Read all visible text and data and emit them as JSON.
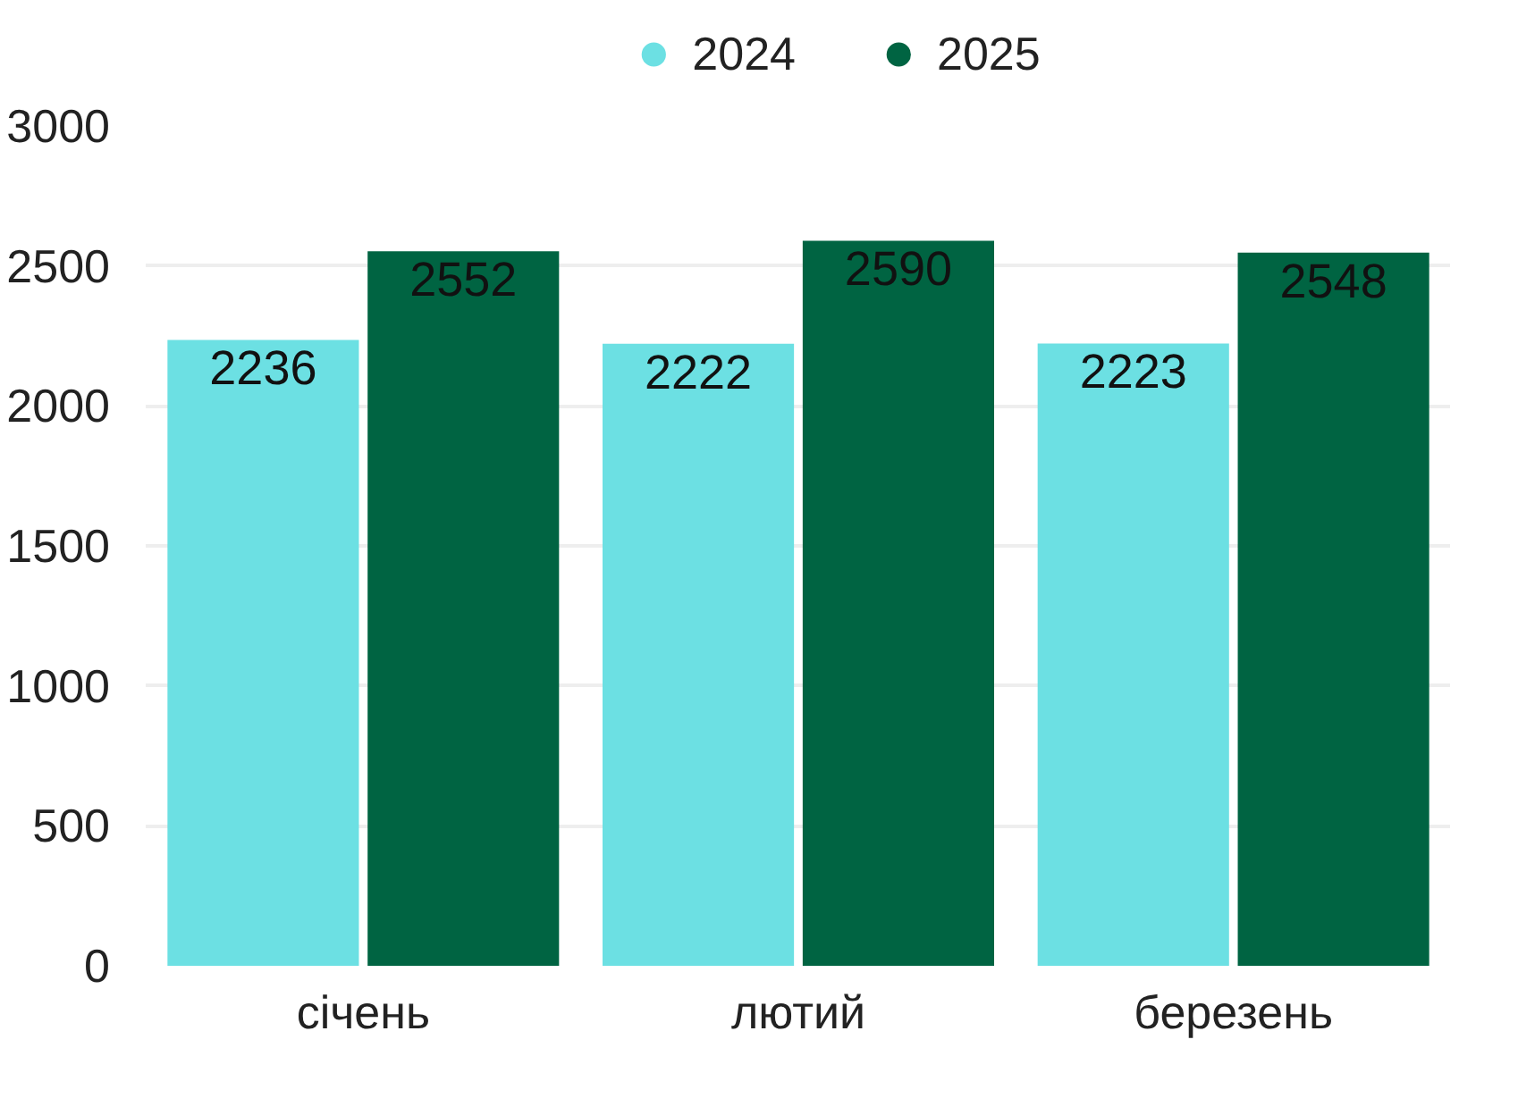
{
  "chart_data": {
    "type": "bar",
    "categories": [
      "січень",
      "лютий",
      "березень"
    ],
    "series": [
      {
        "name": "2024",
        "color": "#6ce0e3",
        "values": [
          2236,
          2222,
          2223
        ]
      },
      {
        "name": "2025",
        "color": "#006442",
        "values": [
          2552,
          2590,
          2548
        ]
      }
    ],
    "ylim": [
      0,
      3000
    ],
    "yticks": [
      0,
      500,
      1000,
      1500,
      2000,
      2500,
      3000
    ],
    "grid": "y",
    "legend": "top",
    "data_labels": true
  }
}
